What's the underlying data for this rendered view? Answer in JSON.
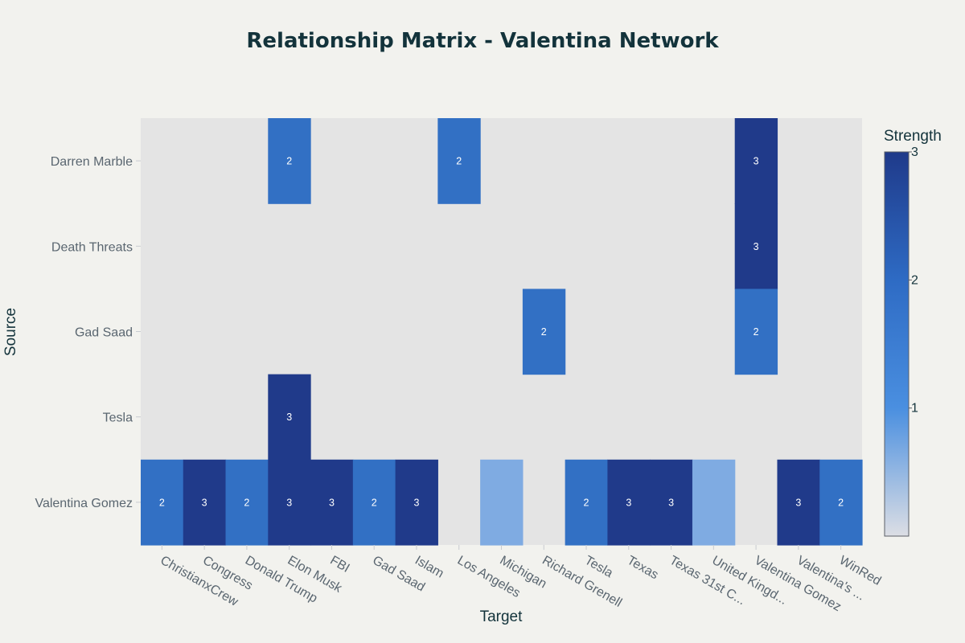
{
  "chart_data": {
    "type": "heatmap",
    "title": "Relationship Matrix - Valentina Network",
    "xlabel": "Target",
    "ylabel": "Source",
    "x_categories": [
      "ChristianxCrew",
      "Congress",
      "Donald Trump",
      "Elon Musk",
      "FBI",
      "Gad Saad",
      "Islam",
      "Los Angeles",
      "Michigan",
      "Richard Grenell",
      "Tesla",
      "Texas",
      "Texas 31st C...",
      "United Kingd...",
      "Valentina Gomez",
      "Valentina's ...",
      "WinRed"
    ],
    "y_categories": [
      "Darren Marble",
      "Death Threats",
      "Gad Saad",
      "Tesla",
      "Valentina Gomez"
    ],
    "values": [
      [
        null,
        null,
        null,
        2,
        null,
        null,
        null,
        2,
        null,
        null,
        null,
        null,
        null,
        null,
        3,
        null,
        null
      ],
      [
        null,
        null,
        null,
        null,
        null,
        null,
        null,
        null,
        null,
        null,
        null,
        null,
        null,
        null,
        3,
        null,
        null
      ],
      [
        null,
        null,
        null,
        null,
        null,
        null,
        null,
        null,
        null,
        2,
        null,
        null,
        null,
        null,
        2,
        null,
        null
      ],
      [
        null,
        null,
        null,
        3,
        null,
        null,
        null,
        null,
        null,
        null,
        null,
        null,
        null,
        null,
        null,
        null,
        null
      ],
      [
        2,
        3,
        2,
        3,
        3,
        2,
        3,
        null,
        1,
        null,
        2,
        3,
        3,
        1,
        null,
        3,
        2
      ]
    ],
    "cell_labels": [
      [
        "",
        "",
        "",
        "2",
        "",
        "",
        "",
        "2",
        "",
        "",
        "",
        "",
        "",
        "",
        "3",
        "",
        ""
      ],
      [
        "",
        "",
        "",
        "",
        "",
        "",
        "",
        "",
        "",
        "",
        "",
        "",
        "",
        "",
        "3",
        "",
        ""
      ],
      [
        "",
        "",
        "",
        "",
        "",
        "",
        "",
        "",
        "",
        "2",
        "",
        "",
        "",
        "",
        "2",
        "",
        ""
      ],
      [
        "",
        "",
        "",
        "3",
        "",
        "",
        "",
        "",
        "",
        "",
        "",
        "",
        "",
        "",
        "",
        "",
        ""
      ],
      [
        "2",
        "3",
        "2",
        "3",
        "3",
        "2",
        "3",
        "",
        "",
        "",
        "2",
        "3",
        "3",
        "",
        "",
        "3",
        "2"
      ]
    ],
    "colorbar": {
      "title": "Strength",
      "range": [
        0,
        3
      ],
      "ticks": [
        1,
        2,
        3
      ],
      "tick_labels": [
        "1",
        "2",
        "3"
      ]
    },
    "colorscale": [
      "#dcdee4",
      "#4a8fe0",
      "#2e6bc4",
      "#1f3a8a"
    ],
    "empty_color": "#e4e4e4",
    "colors": {
      "strength_1": "#7fabe2",
      "strength_2": "#3270c4",
      "strength_3": "#203a8a"
    }
  }
}
